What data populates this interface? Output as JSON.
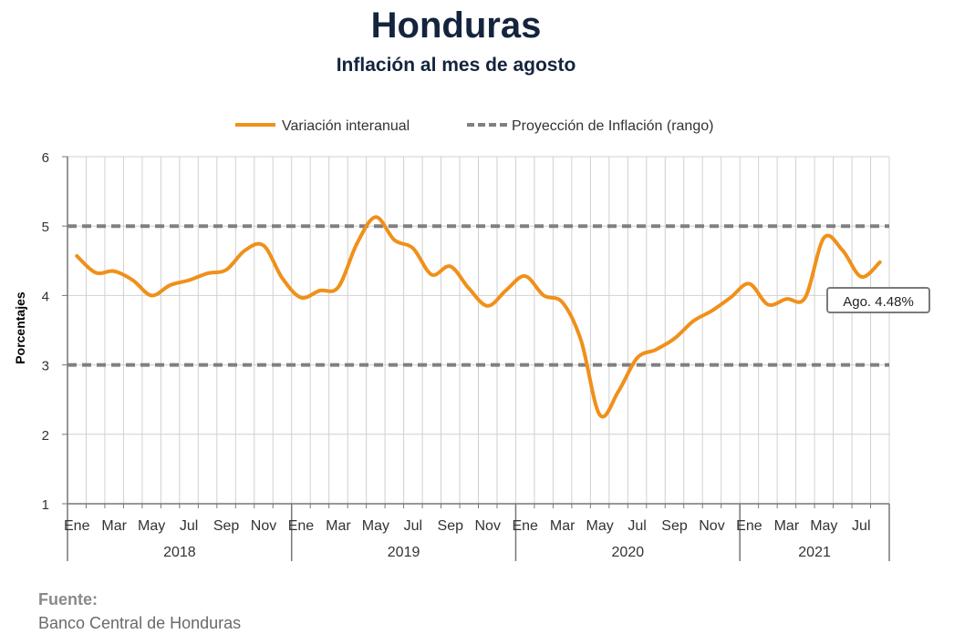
{
  "header": {
    "title": "Honduras",
    "subtitle": "Inflación al mes de agosto"
  },
  "footer": {
    "source_label": "Fuente:",
    "source_text": "Banco Central de Honduras"
  },
  "colors": {
    "series_line": "#f0901a",
    "projection_line": "#808080",
    "grid": "#d0d0d0",
    "title": "#14243e"
  },
  "chart_data": {
    "type": "line",
    "title": "Honduras",
    "subtitle": "Inflación al mes de agosto",
    "ylabel": "Porcentajes",
    "xlabel": "",
    "ylim": [
      1,
      6
    ],
    "yticks": [
      "1",
      "2",
      "3",
      "4",
      "5",
      "6"
    ],
    "legend_position": "top-center",
    "grid": true,
    "month_tick_labels": [
      "Ene",
      "Mar",
      "May",
      "Jul",
      "Sep",
      "Nov",
      "Ene",
      "Mar",
      "May",
      "Jul",
      "Sep",
      "Nov",
      "Ene",
      "Mar",
      "May",
      "Jul",
      "Sep",
      "Nov",
      "Ene",
      "Mar",
      "May",
      "Jul"
    ],
    "years": [
      "2018",
      "2019",
      "2020",
      "2021"
    ],
    "series": [
      {
        "name": "Variación interanual",
        "values": [
          4.57,
          4.33,
          4.35,
          4.22,
          4.0,
          4.15,
          4.22,
          4.32,
          4.37,
          4.65,
          4.72,
          4.25,
          3.97,
          4.07,
          4.12,
          4.75,
          5.13,
          4.8,
          4.68,
          4.3,
          4.42,
          4.1,
          3.85,
          4.08,
          4.28,
          4.0,
          3.9,
          3.35,
          2.28,
          2.62,
          3.1,
          3.22,
          3.38,
          3.63,
          3.78,
          3.97,
          4.17,
          3.87,
          3.95,
          3.97,
          4.83,
          4.65,
          4.27,
          4.48
        ]
      },
      {
        "name": "Proyección de Inflación (rango)",
        "upper": 5,
        "lower": 3
      }
    ],
    "annotation": "Ago. 4.48%"
  }
}
